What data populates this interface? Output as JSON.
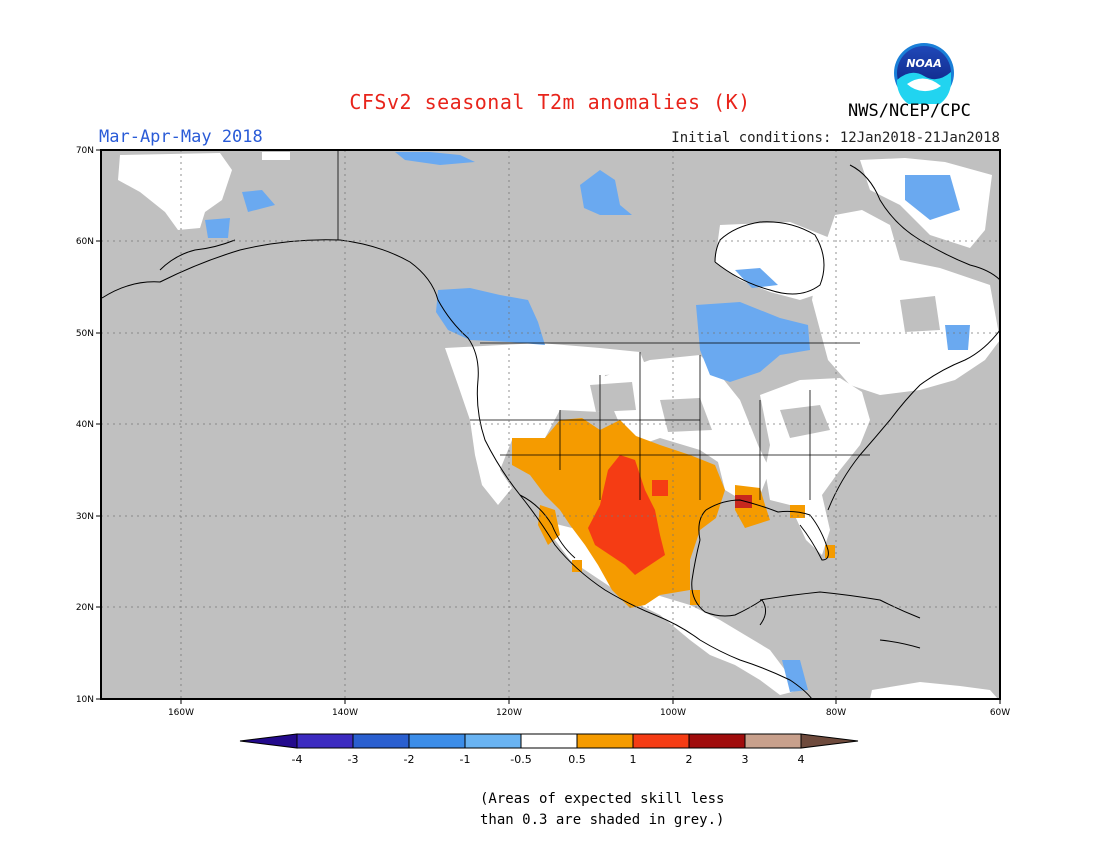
{
  "header": {
    "title": "CFSv2 seasonal T2m anomalies (K)",
    "agency": "NWS/NCEP/CPC",
    "logo_text": "NOAA",
    "period": "Mar-Apr-May 2018",
    "initial_conditions": "Initial conditions: 12Jan2018-21Jan2018"
  },
  "map": {
    "lat_labels": [
      "70N",
      "60N",
      "50N",
      "40N",
      "30N",
      "20N",
      "10N"
    ],
    "lon_labels": [
      "160W",
      "140W",
      "120W",
      "100W",
      "80W",
      "60W"
    ],
    "colors": {
      "skill_mask": "#c0c0c0",
      "near_normal": "#ffffff",
      "cool_-1_-0.5": "#69a8f0",
      "warm_0.5_1": "#f59b00",
      "warm_1_2": "#f53c14"
    }
  },
  "colorbar": {
    "labels": [
      "-4",
      "-3",
      "-2",
      "-1",
      "-0.5",
      "0.5",
      "1",
      "2",
      "3",
      "4"
    ],
    "colors": [
      "#230a8c",
      "#3c2bc0",
      "#2a5fcf",
      "#3c8de8",
      "#69b3f2",
      "#ffffff",
      "#f59b00",
      "#f53c14",
      "#a00c0c",
      "#c8a08c",
      "#6e4a3c"
    ]
  },
  "footnote": {
    "line1": "(Areas of expected skill less",
    "line2": "than 0.3 are shaded in grey.)"
  }
}
